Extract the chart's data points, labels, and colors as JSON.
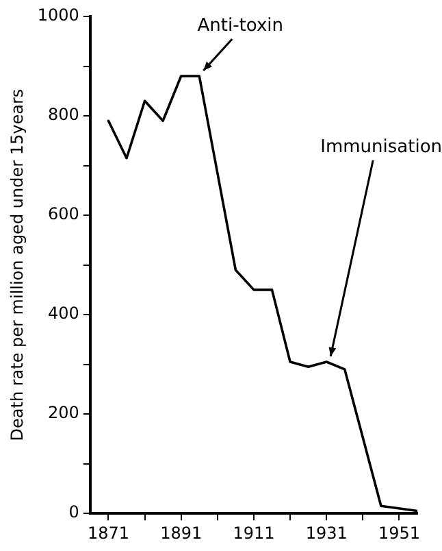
{
  "chart_data": {
    "type": "line",
    "ylabel": "Death rate per million aged under 15years",
    "x": [
      1871,
      1876,
      1881,
      1886,
      1891,
      1896,
      1906,
      1911,
      1916,
      1921,
      1926,
      1931,
      1936,
      1946,
      1956
    ],
    "series": [
      {
        "color": "#000000",
        "values": [
          790,
          715,
          830,
          790,
          880,
          880,
          490,
          450,
          450,
          305,
          295,
          305,
          290,
          15,
          5
        ]
      }
    ],
    "xlim": [
      1866,
      1956
    ],
    "xticks": [
      1871,
      {
        "value": 1881,
        "label": null
      },
      1891,
      {
        "value": 1901,
        "label": null
      },
      1911,
      {
        "value": 1921,
        "label": null
      },
      1931,
      {
        "value": 1941,
        "label": null
      },
      1951
    ],
    "ylim": [
      0,
      1000
    ],
    "yticks": [
      0,
      {
        "value": 100,
        "label": null
      },
      200,
      {
        "value": 300,
        "label": null
      },
      400,
      {
        "value": 500,
        "label": null
      },
      600,
      {
        "value": 700,
        "label": null
      },
      800,
      {
        "value": 900,
        "label": null
      },
      1000
    ],
    "annotations": [
      {
        "text": "Anti-toxin",
        "x": 1896,
        "y": 880
      },
      {
        "text": "Immunisation",
        "x": 1931,
        "y": 305
      }
    ],
    "grid": false,
    "legend": false,
    "marker": "none",
    "line_style": "solid"
  }
}
